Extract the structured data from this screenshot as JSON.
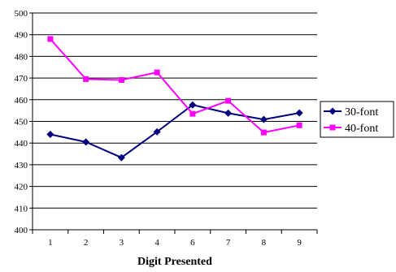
{
  "chart_data": {
    "type": "line",
    "title": "",
    "xlabel": "Digit Presented",
    "ylabel": "",
    "categories": [
      "1",
      "2",
      "3",
      "4",
      "6",
      "7",
      "8",
      "9"
    ],
    "ylim": [
      400,
      500
    ],
    "yticks": [
      400,
      410,
      420,
      430,
      440,
      450,
      460,
      470,
      480,
      490,
      500
    ],
    "grid": "horizontal",
    "legend": "right",
    "series": [
      {
        "name": "30-font",
        "color": "#000080",
        "marker": "diamond",
        "values": [
          444,
          440.5,
          433.3,
          445.2,
          457.6,
          453.8,
          450.9,
          453.9
        ]
      },
      {
        "name": "40-font",
        "color": "#FF00FF",
        "marker": "square",
        "values": [
          488,
          469.5,
          469.1,
          472.6,
          453.5,
          459.5,
          444.9,
          448.2
        ]
      }
    ]
  }
}
